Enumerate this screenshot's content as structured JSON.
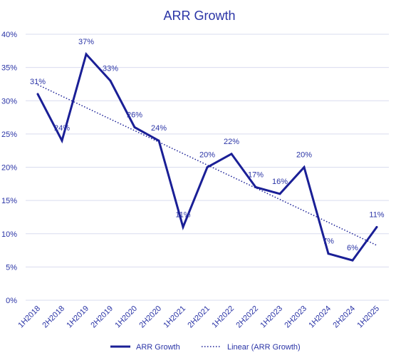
{
  "chart_data": {
    "type": "line",
    "title": "ARR Growth",
    "xlabel": "",
    "ylabel": "",
    "categories": [
      "1H2018",
      "2H2018",
      "1H2019",
      "2H2019",
      "1H2020",
      "2H2020",
      "1H2021",
      "2H2021",
      "1H2022",
      "2H2022",
      "1H2023",
      "2H2023",
      "1H2024",
      "2H2024",
      "1H2025"
    ],
    "series": [
      {
        "name": "ARR Growth",
        "values": [
          31,
          24,
          37,
          33,
          26,
          24,
          11,
          20,
          22,
          17,
          16,
          20,
          7,
          6,
          11
        ],
        "labels": [
          "31%",
          "24%",
          "37%",
          "33%",
          "26%",
          "24%",
          "11%",
          "20%",
          "22%",
          "17%",
          "16%",
          "20%",
          "7%",
          "6%",
          "11%"
        ],
        "color": "#1a1f96"
      }
    ],
    "trendline": {
      "name": "Linear (ARR Growth)",
      "type": "linear",
      "color": "#1a1f96"
    },
    "yticks": [
      0,
      5,
      10,
      15,
      20,
      25,
      30,
      35,
      40
    ],
    "ytick_labels": [
      "0%",
      "5%",
      "10%",
      "15%",
      "20%",
      "25%",
      "30%",
      "35%",
      "40%"
    ],
    "ylim": [
      0,
      40
    ],
    "grid": true,
    "legend_position": "bottom",
    "colors": {
      "text": "#2a34a6",
      "grid": "#d9dcef"
    }
  }
}
